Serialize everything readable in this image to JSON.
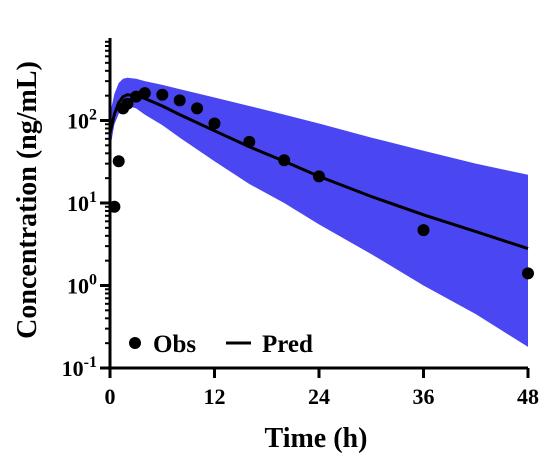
{
  "chart_data": {
    "type": "scatter",
    "xlabel": "Time (h)",
    "ylabel": "Concentration (ng/mL)",
    "xlim": [
      0,
      48
    ],
    "ylim": [
      0.1,
      1000
    ],
    "y_scale": "log",
    "x_ticks": [
      0,
      12,
      24,
      36,
      48
    ],
    "y_ticks": [
      {
        "value": 0.1,
        "base": "10",
        "exp": "-1"
      },
      {
        "value": 1,
        "base": "10",
        "exp": "0"
      },
      {
        "value": 10,
        "base": "10",
        "exp": "1"
      },
      {
        "value": 100,
        "base": "10",
        "exp": "2"
      }
    ],
    "grid": false,
    "legend_position": "bottom-left",
    "series": [
      {
        "name": "Obs",
        "kind": "points",
        "color": "#000000",
        "x": [
          0.5,
          1,
          1.5,
          2,
          3,
          4,
          6,
          8,
          10,
          12,
          16,
          20,
          24,
          36,
          48
        ],
        "y": [
          9,
          32,
          140,
          160,
          195,
          215,
          205,
          175,
          140,
          92,
          55,
          33,
          21,
          4.7,
          1.4
        ]
      },
      {
        "name": "Pred",
        "kind": "line",
        "color": "#000000",
        "x": [
          0,
          0.5,
          1,
          1.5,
          2,
          3,
          4,
          6,
          8,
          12,
          16,
          20,
          24,
          30,
          36,
          42,
          48
        ],
        "y": [
          70,
          120,
          165,
          195,
          205,
          200,
          185,
          150,
          118,
          75,
          48,
          32,
          21,
          12,
          7.2,
          4.5,
          2.8
        ]
      },
      {
        "kind": "band",
        "color": "#4a46f2",
        "x": [
          0,
          0.5,
          1,
          1.5,
          2,
          3,
          4,
          6,
          8,
          12,
          16,
          20,
          24,
          30,
          36,
          42,
          48
        ],
        "lower": [
          45,
          90,
          120,
          140,
          150,
          140,
          118,
          88,
          62,
          32,
          17,
          10,
          5.5,
          2.4,
          1,
          0.45,
          0.18
        ],
        "upper": [
          120,
          210,
          285,
          320,
          330,
          320,
          300,
          270,
          240,
          190,
          150,
          118,
          92,
          62,
          43,
          30,
          22
        ]
      }
    ]
  },
  "legend": {
    "obs_label": "Obs",
    "pred_label": "Pred"
  }
}
